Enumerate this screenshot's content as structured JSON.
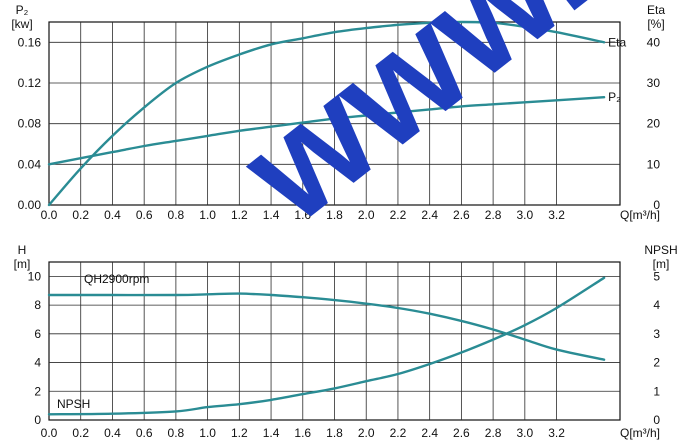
{
  "watermark": "www.sa",
  "colors": {
    "curve": "#2a8c94",
    "grid": "#2b2b2b",
    "axis": "#111111",
    "watermark": "#1f3fbf"
  },
  "chart_data": [
    {
      "type": "line",
      "x_label": "Q[m³/h]",
      "x_ticks": [
        "0.0",
        "0.2",
        "0.4",
        "0.6",
        "0.8",
        "1.0",
        "1.2",
        "1.4",
        "1.6",
        "1.8",
        "2.0",
        "2.2",
        "2.4",
        "2.6",
        "2.8",
        "3.0",
        "3.2"
      ],
      "xlim": [
        0,
        3.6
      ],
      "left_axis": {
        "label_top": "P₂",
        "label_unit": "[kw]",
        "ticks": [
          "0.00",
          "0.04",
          "0.08",
          "0.12",
          "0.16"
        ],
        "ylim": [
          0,
          0.18
        ]
      },
      "right_axis": {
        "label_top": "Eta",
        "label_unit": "[%]",
        "ticks": [
          "0",
          "10",
          "20",
          "30",
          "40"
        ],
        "ylim": [
          0,
          45
        ]
      },
      "series": [
        {
          "name": "Eta",
          "axis": "right",
          "x": [
            0.0,
            0.2,
            0.4,
            0.6,
            0.8,
            1.0,
            1.2,
            1.4,
            1.6,
            1.8,
            2.0,
            2.2,
            2.4,
            2.6,
            2.8,
            3.0,
            3.2,
            3.5
          ],
          "y": [
            0,
            9,
            17,
            24,
            30,
            34,
            37,
            39.5,
            41,
            42.5,
            43.5,
            44.3,
            44.8,
            45,
            44.8,
            43.8,
            42.5,
            40
          ]
        },
        {
          "name": "P₂",
          "axis": "left",
          "x": [
            0.0,
            0.2,
            0.4,
            0.6,
            0.8,
            1.0,
            1.2,
            1.4,
            1.6,
            1.8,
            2.0,
            2.2,
            2.4,
            2.6,
            2.8,
            3.0,
            3.2,
            3.5
          ],
          "y": [
            0.04,
            0.046,
            0.052,
            0.058,
            0.063,
            0.068,
            0.073,
            0.077,
            0.081,
            0.085,
            0.088,
            0.091,
            0.094,
            0.097,
            0.099,
            0.101,
            0.103,
            0.106
          ]
        }
      ]
    },
    {
      "type": "line",
      "x_label": "Q[m³/h]",
      "x_ticks": [
        "0.0",
        "0.2",
        "0.4",
        "0.6",
        "0.8",
        "1.0",
        "1.2",
        "1.4",
        "1.6",
        "1.8",
        "2.0",
        "2.2",
        "2.4",
        "2.6",
        "2.8",
        "3.0",
        "3.2"
      ],
      "xlim": [
        0,
        3.6
      ],
      "left_axis": {
        "label_top": "H",
        "label_unit": "[m]",
        "ticks": [
          "0",
          "2",
          "4",
          "6",
          "8",
          "10"
        ],
        "ylim": [
          0,
          11
        ]
      },
      "right_axis": {
        "label_top": "NPSH",
        "label_unit": "[m]",
        "ticks": [
          "0",
          "1",
          "2",
          "3",
          "4",
          "5"
        ],
        "ylim": [
          0,
          5.5
        ]
      },
      "series": [
        {
          "name": "QH2900rpm",
          "axis": "left",
          "x": [
            0.0,
            0.4,
            0.8,
            1.0,
            1.2,
            1.4,
            1.6,
            1.8,
            2.0,
            2.2,
            2.4,
            2.6,
            2.8,
            3.0,
            3.2,
            3.5
          ],
          "y": [
            8.7,
            8.7,
            8.7,
            8.75,
            8.8,
            8.7,
            8.55,
            8.35,
            8.1,
            7.8,
            7.4,
            6.9,
            6.3,
            5.6,
            4.9,
            4.2
          ]
        },
        {
          "name": "NPSH",
          "axis": "right",
          "x": [
            0.0,
            0.4,
            0.8,
            1.0,
            1.2,
            1.4,
            1.6,
            1.8,
            2.0,
            2.2,
            2.4,
            2.6,
            2.8,
            3.0,
            3.2,
            3.5
          ],
          "y": [
            0.2,
            0.22,
            0.3,
            0.45,
            0.55,
            0.7,
            0.9,
            1.1,
            1.35,
            1.6,
            1.95,
            2.35,
            2.8,
            3.3,
            3.9,
            4.95
          ]
        }
      ]
    }
  ]
}
